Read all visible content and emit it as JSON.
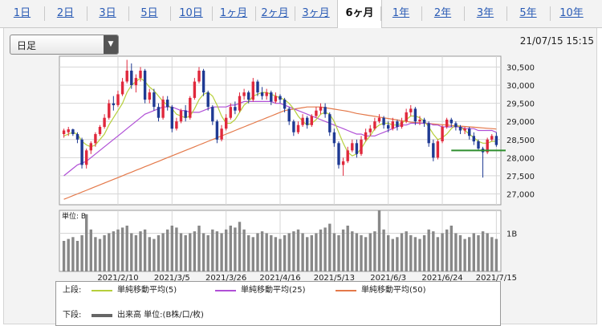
{
  "tabs": [
    {
      "label": "1日",
      "active": false
    },
    {
      "label": "2日",
      "active": false
    },
    {
      "label": "3日",
      "active": false
    },
    {
      "label": "5日",
      "active": false
    },
    {
      "label": "10日",
      "active": false
    },
    {
      "label": "1ヶ月",
      "active": false
    },
    {
      "label": "2ヶ月",
      "active": false
    },
    {
      "label": "3ヶ月",
      "active": false
    },
    {
      "label": "6ヶ月",
      "active": true
    },
    {
      "label": "1年",
      "active": false
    },
    {
      "label": "2年",
      "active": false
    },
    {
      "label": "3年",
      "active": false
    },
    {
      "label": "5年",
      "active": false
    },
    {
      "label": "10年",
      "active": false
    }
  ],
  "select": {
    "value": "日足"
  },
  "datetime": "21/07/15 15:15",
  "legend": {
    "upper_label": "上段:",
    "lower_label": "下段:",
    "items": [
      {
        "label": "単純移動平均(5)",
        "color": "#b6cf3c"
      },
      {
        "label": "単純移動平均(25)",
        "color": "#b04fd6"
      },
      {
        "label": "単純移動平均(50)",
        "color": "#e4794a"
      }
    ],
    "volume_item": {
      "label": "出来高 単位:(B株/口/枚)",
      "color": "#666666"
    }
  },
  "colors": {
    "up": "#e0283c",
    "down": "#1f3a93",
    "grid": "#d6d6d6",
    "volume": "#888888",
    "hline": "#2f8f2f"
  },
  "chart_data": [
    {
      "type": "candlestick",
      "ylim": [
        26700,
        30800
      ],
      "yticks": [
        27000,
        27500,
        28000,
        28500,
        29000,
        29500,
        30000,
        30500
      ],
      "ytick_labels": [
        "27,000",
        "27,500",
        "28,000",
        "28,500",
        "29,000",
        "29,500",
        "30,000",
        "30,500"
      ],
      "xtick_labels": [
        "2021/2/10",
        "2021/3/5",
        "2021/3/26",
        "2021/4/16",
        "2021/5/13",
        "2021/6/3",
        "2021/6/24",
        "2021/7/15"
      ],
      "reference_line": 28200,
      "ohlc": [
        [
          28650,
          28800,
          28550,
          28750
        ],
        [
          28700,
          28850,
          28600,
          28780
        ],
        [
          28780,
          28800,
          28600,
          28650
        ],
        [
          28650,
          28700,
          28400,
          28500
        ],
        [
          28500,
          28550,
          27700,
          27800
        ],
        [
          27800,
          28250,
          27700,
          28200
        ],
        [
          28200,
          28450,
          28100,
          28400
        ],
        [
          28400,
          28700,
          28300,
          28650
        ],
        [
          28650,
          28900,
          28600,
          28850
        ],
        [
          28850,
          29200,
          28800,
          29100
        ],
        [
          29100,
          29600,
          29050,
          29500
        ],
        [
          29500,
          29700,
          29300,
          29450
        ],
        [
          29450,
          29850,
          29400,
          29750
        ],
        [
          29750,
          30200,
          29700,
          30100
        ],
        [
          30100,
          30700,
          30050,
          30400
        ],
        [
          30400,
          30600,
          29900,
          30000
        ],
        [
          30000,
          30300,
          29800,
          30200
        ],
        [
          30200,
          30500,
          30100,
          30400
        ],
        [
          30400,
          30450,
          29500,
          29600
        ],
        [
          29600,
          29900,
          29500,
          29800
        ],
        [
          29800,
          29900,
          29300,
          29400
        ],
        [
          29400,
          29500,
          29000,
          29100
        ],
        [
          29100,
          29700,
          29050,
          29600
        ],
        [
          29600,
          29700,
          29300,
          29400
        ],
        [
          29400,
          29450,
          28700,
          28800
        ],
        [
          28800,
          29100,
          28750,
          29000
        ],
        [
          29000,
          29350,
          28950,
          29300
        ],
        [
          29300,
          29450,
          29000,
          29100
        ],
        [
          29100,
          29700,
          29050,
          29650
        ],
        [
          29650,
          30200,
          29600,
          30100
        ],
        [
          30100,
          30500,
          30050,
          30400
        ],
        [
          30400,
          30450,
          29700,
          29800
        ],
        [
          29800,
          29850,
          29300,
          29400
        ],
        [
          29400,
          29450,
          28900,
          29000
        ],
        [
          29000,
          29050,
          28400,
          28500
        ],
        [
          28500,
          28900,
          28450,
          28800
        ],
        [
          28800,
          29200,
          28750,
          29100
        ],
        [
          29100,
          29500,
          29050,
          29400
        ],
        [
          29400,
          29550,
          29200,
          29300
        ],
        [
          29300,
          29800,
          29250,
          29700
        ],
        [
          29700,
          29900,
          29600,
          29800
        ],
        [
          29800,
          29850,
          29500,
          29600
        ],
        [
          29600,
          30200,
          29550,
          30100
        ],
        [
          30100,
          30150,
          29700,
          29800
        ],
        [
          29800,
          29950,
          29600,
          29700
        ],
        [
          29700,
          29900,
          29600,
          29800
        ],
        [
          29800,
          29850,
          29450,
          29550
        ],
        [
          29550,
          29800,
          29500,
          29700
        ],
        [
          29700,
          29750,
          29500,
          29600
        ],
        [
          29600,
          29650,
          29250,
          29350
        ],
        [
          29350,
          29400,
          28900,
          29000
        ],
        [
          29000,
          29050,
          28600,
          28700
        ],
        [
          28700,
          29000,
          28650,
          28900
        ],
        [
          28900,
          29200,
          28850,
          29100
        ],
        [
          29100,
          29150,
          28800,
          28900
        ],
        [
          28900,
          29200,
          28850,
          29150
        ],
        [
          29150,
          29400,
          29100,
          29300
        ],
        [
          29300,
          29500,
          29200,
          29400
        ],
        [
          29400,
          29500,
          29100,
          29200
        ],
        [
          29200,
          29250,
          28600,
          28700
        ],
        [
          28700,
          28800,
          28300,
          28400
        ],
        [
          28400,
          28450,
          27700,
          27800
        ],
        [
          27800,
          28000,
          27500,
          27900
        ],
        [
          27900,
          28300,
          27850,
          28200
        ],
        [
          28200,
          28500,
          28150,
          28400
        ],
        [
          28400,
          28500,
          28000,
          28100
        ],
        [
          28100,
          28600,
          28050,
          28500
        ],
        [
          28500,
          28800,
          28450,
          28700
        ],
        [
          28700,
          28900,
          28600,
          28800
        ],
        [
          28800,
          29100,
          28750,
          29000
        ],
        [
          29000,
          29200,
          28950,
          29100
        ],
        [
          29100,
          29150,
          28800,
          28900
        ],
        [
          28900,
          29000,
          28700,
          28800
        ],
        [
          28800,
          29100,
          28750,
          29000
        ],
        [
          29000,
          29050,
          28750,
          28850
        ],
        [
          28850,
          29100,
          28800,
          29000
        ],
        [
          29000,
          29350,
          28950,
          29250
        ],
        [
          29250,
          29450,
          29150,
          29350
        ],
        [
          29350,
          29400,
          28900,
          29000
        ],
        [
          29000,
          29150,
          28900,
          29050
        ],
        [
          29050,
          29100,
          28850,
          28950
        ],
        [
          28950,
          29000,
          28300,
          28400
        ],
        [
          28400,
          28500,
          27900,
          28000
        ],
        [
          28000,
          28500,
          27950,
          28450
        ],
        [
          28450,
          28900,
          28400,
          28850
        ],
        [
          28850,
          29100,
          28800,
          29050
        ],
        [
          29050,
          29100,
          28850,
          28950
        ],
        [
          28950,
          29000,
          28750,
          28850
        ],
        [
          28850,
          28900,
          28650,
          28750
        ],
        [
          28750,
          28850,
          28650,
          28800
        ],
        [
          28800,
          28850,
          28500,
          28600
        ],
        [
          28600,
          28700,
          28350,
          28450
        ],
        [
          28450,
          28500,
          28200,
          28250
        ],
        [
          28250,
          28300,
          27450,
          28150
        ],
        [
          28150,
          28550,
          28100,
          28500
        ],
        [
          28500,
          28650,
          28450,
          28600
        ],
        [
          28600,
          28700,
          28300,
          28350
        ]
      ],
      "sma5": [
        28600,
        28650,
        28700,
        28650,
        28450,
        28350,
        28300,
        28350,
        28500,
        28650,
        28900,
        29100,
        29300,
        29500,
        29800,
        30000,
        30100,
        30200,
        30100,
        29950,
        29850,
        29700,
        29550,
        29450,
        29350,
        29200,
        29150,
        29100,
        29150,
        29350,
        29600,
        29750,
        29800,
        29700,
        29450,
        29150,
        28950,
        28950,
        29050,
        29250,
        29450,
        29550,
        29700,
        29750,
        29800,
        29800,
        29750,
        29700,
        29650,
        29600,
        29500,
        29350,
        29150,
        29000,
        28900,
        28950,
        29050,
        29200,
        29250,
        29200,
        29000,
        28700,
        28400,
        28150,
        28050,
        28100,
        28250,
        28450,
        28600,
        28800,
        28900,
        28950,
        28950,
        28900,
        28900,
        28950,
        29050,
        29150,
        29150,
        29100,
        29000,
        28850,
        28650,
        28500,
        28550,
        28650,
        28800,
        28900,
        28850,
        28750,
        28650,
        28550,
        28450,
        28400,
        28400,
        28450,
        28450
      ],
      "sma25": [
        27500,
        27600,
        27700,
        27800,
        27850,
        27900,
        28000,
        28100,
        28200,
        28300,
        28400,
        28500,
        28600,
        28700,
        28800,
        28900,
        29000,
        29100,
        29200,
        29250,
        29300,
        29350,
        29400,
        29400,
        29400,
        29350,
        29300,
        29300,
        29250,
        29250,
        29250,
        29300,
        29350,
        29400,
        29400,
        29400,
        29400,
        29450,
        29450,
        29500,
        29550,
        29550,
        29550,
        29550,
        29550,
        29550,
        29550,
        29500,
        29500,
        29450,
        29400,
        29350,
        29300,
        29250,
        29200,
        29150,
        29100,
        29050,
        29000,
        28950,
        28900,
        28850,
        28800,
        28750,
        28700,
        28650,
        28650,
        28600,
        28600,
        28600,
        28650,
        28700,
        28750,
        28800,
        28850,
        28900,
        28900,
        28950,
        28950,
        28950,
        28950,
        28950,
        28900,
        28900,
        28850,
        28850,
        28850,
        28850,
        28850,
        28800,
        28800,
        28800,
        28750,
        28750,
        28750,
        28750,
        28700
      ],
      "sma50": [
        26850,
        26900,
        26950,
        27000,
        27050,
        27100,
        27150,
        27200,
        27250,
        27300,
        27350,
        27400,
        27450,
        27500,
        27550,
        27600,
        27650,
        27700,
        27750,
        27800,
        27850,
        27900,
        27950,
        28000,
        28050,
        28100,
        28150,
        28200,
        28250,
        28300,
        28350,
        28400,
        28450,
        28500,
        28550,
        28600,
        28650,
        28700,
        28750,
        28800,
        28850,
        28900,
        28950,
        29000,
        29050,
        29100,
        29150,
        29200,
        29250,
        29300,
        29320,
        29340,
        29360,
        29380,
        29400,
        29400,
        29400,
        29400,
        29380,
        29360,
        29340,
        29320,
        29300,
        29280,
        29250,
        29220,
        29200,
        29180,
        29160,
        29140,
        29120,
        29100,
        29080,
        29060,
        29040,
        29020,
        29000,
        28980,
        28970,
        28960,
        28950,
        28940,
        28930,
        28920,
        28910,
        28900,
        28890,
        28880,
        28870,
        28860,
        28850,
        28840,
        28830,
        28820,
        28810,
        28800,
        28790
      ]
    },
    {
      "type": "bar",
      "title": "単位: B",
      "ytick_labels": [
        "1B"
      ],
      "ylim": [
        0,
        1.6
      ],
      "values": [
        0.8,
        0.85,
        0.9,
        0.8,
        0.95,
        1.5,
        1.1,
        0.9,
        0.85,
        0.95,
        1.0,
        1.05,
        1.1,
        1.15,
        1.2,
        1.0,
        0.95,
        1.05,
        1.1,
        0.9,
        0.85,
        0.95,
        1.0,
        1.1,
        1.2,
        1.15,
        1.0,
        0.95,
        1.0,
        1.05,
        1.2,
        1.0,
        0.95,
        1.1,
        1.05,
        1.0,
        1.1,
        1.2,
        1.15,
        1.3,
        1.1,
        0.95,
        0.9,
        1.0,
        1.05,
        1.0,
        0.95,
        0.9,
        0.85,
        0.95,
        1.0,
        1.05,
        1.1,
        1.0,
        0.9,
        0.95,
        1.0,
        1.1,
        1.15,
        1.25,
        1.0,
        0.95,
        1.1,
        1.2,
        1.05,
        1.0,
        0.95,
        0.9,
        1.0,
        1.05,
        1.6,
        1.1,
        0.95,
        0.85,
        0.9,
        1.0,
        1.05,
        0.95,
        0.9,
        0.85,
        0.95,
        1.1,
        1.05,
        0.9,
        1.0,
        1.1,
        1.2,
        1.0,
        0.95,
        0.85,
        0.9,
        1.0,
        0.95,
        1.05,
        1.0,
        0.9,
        0.85
      ]
    }
  ]
}
